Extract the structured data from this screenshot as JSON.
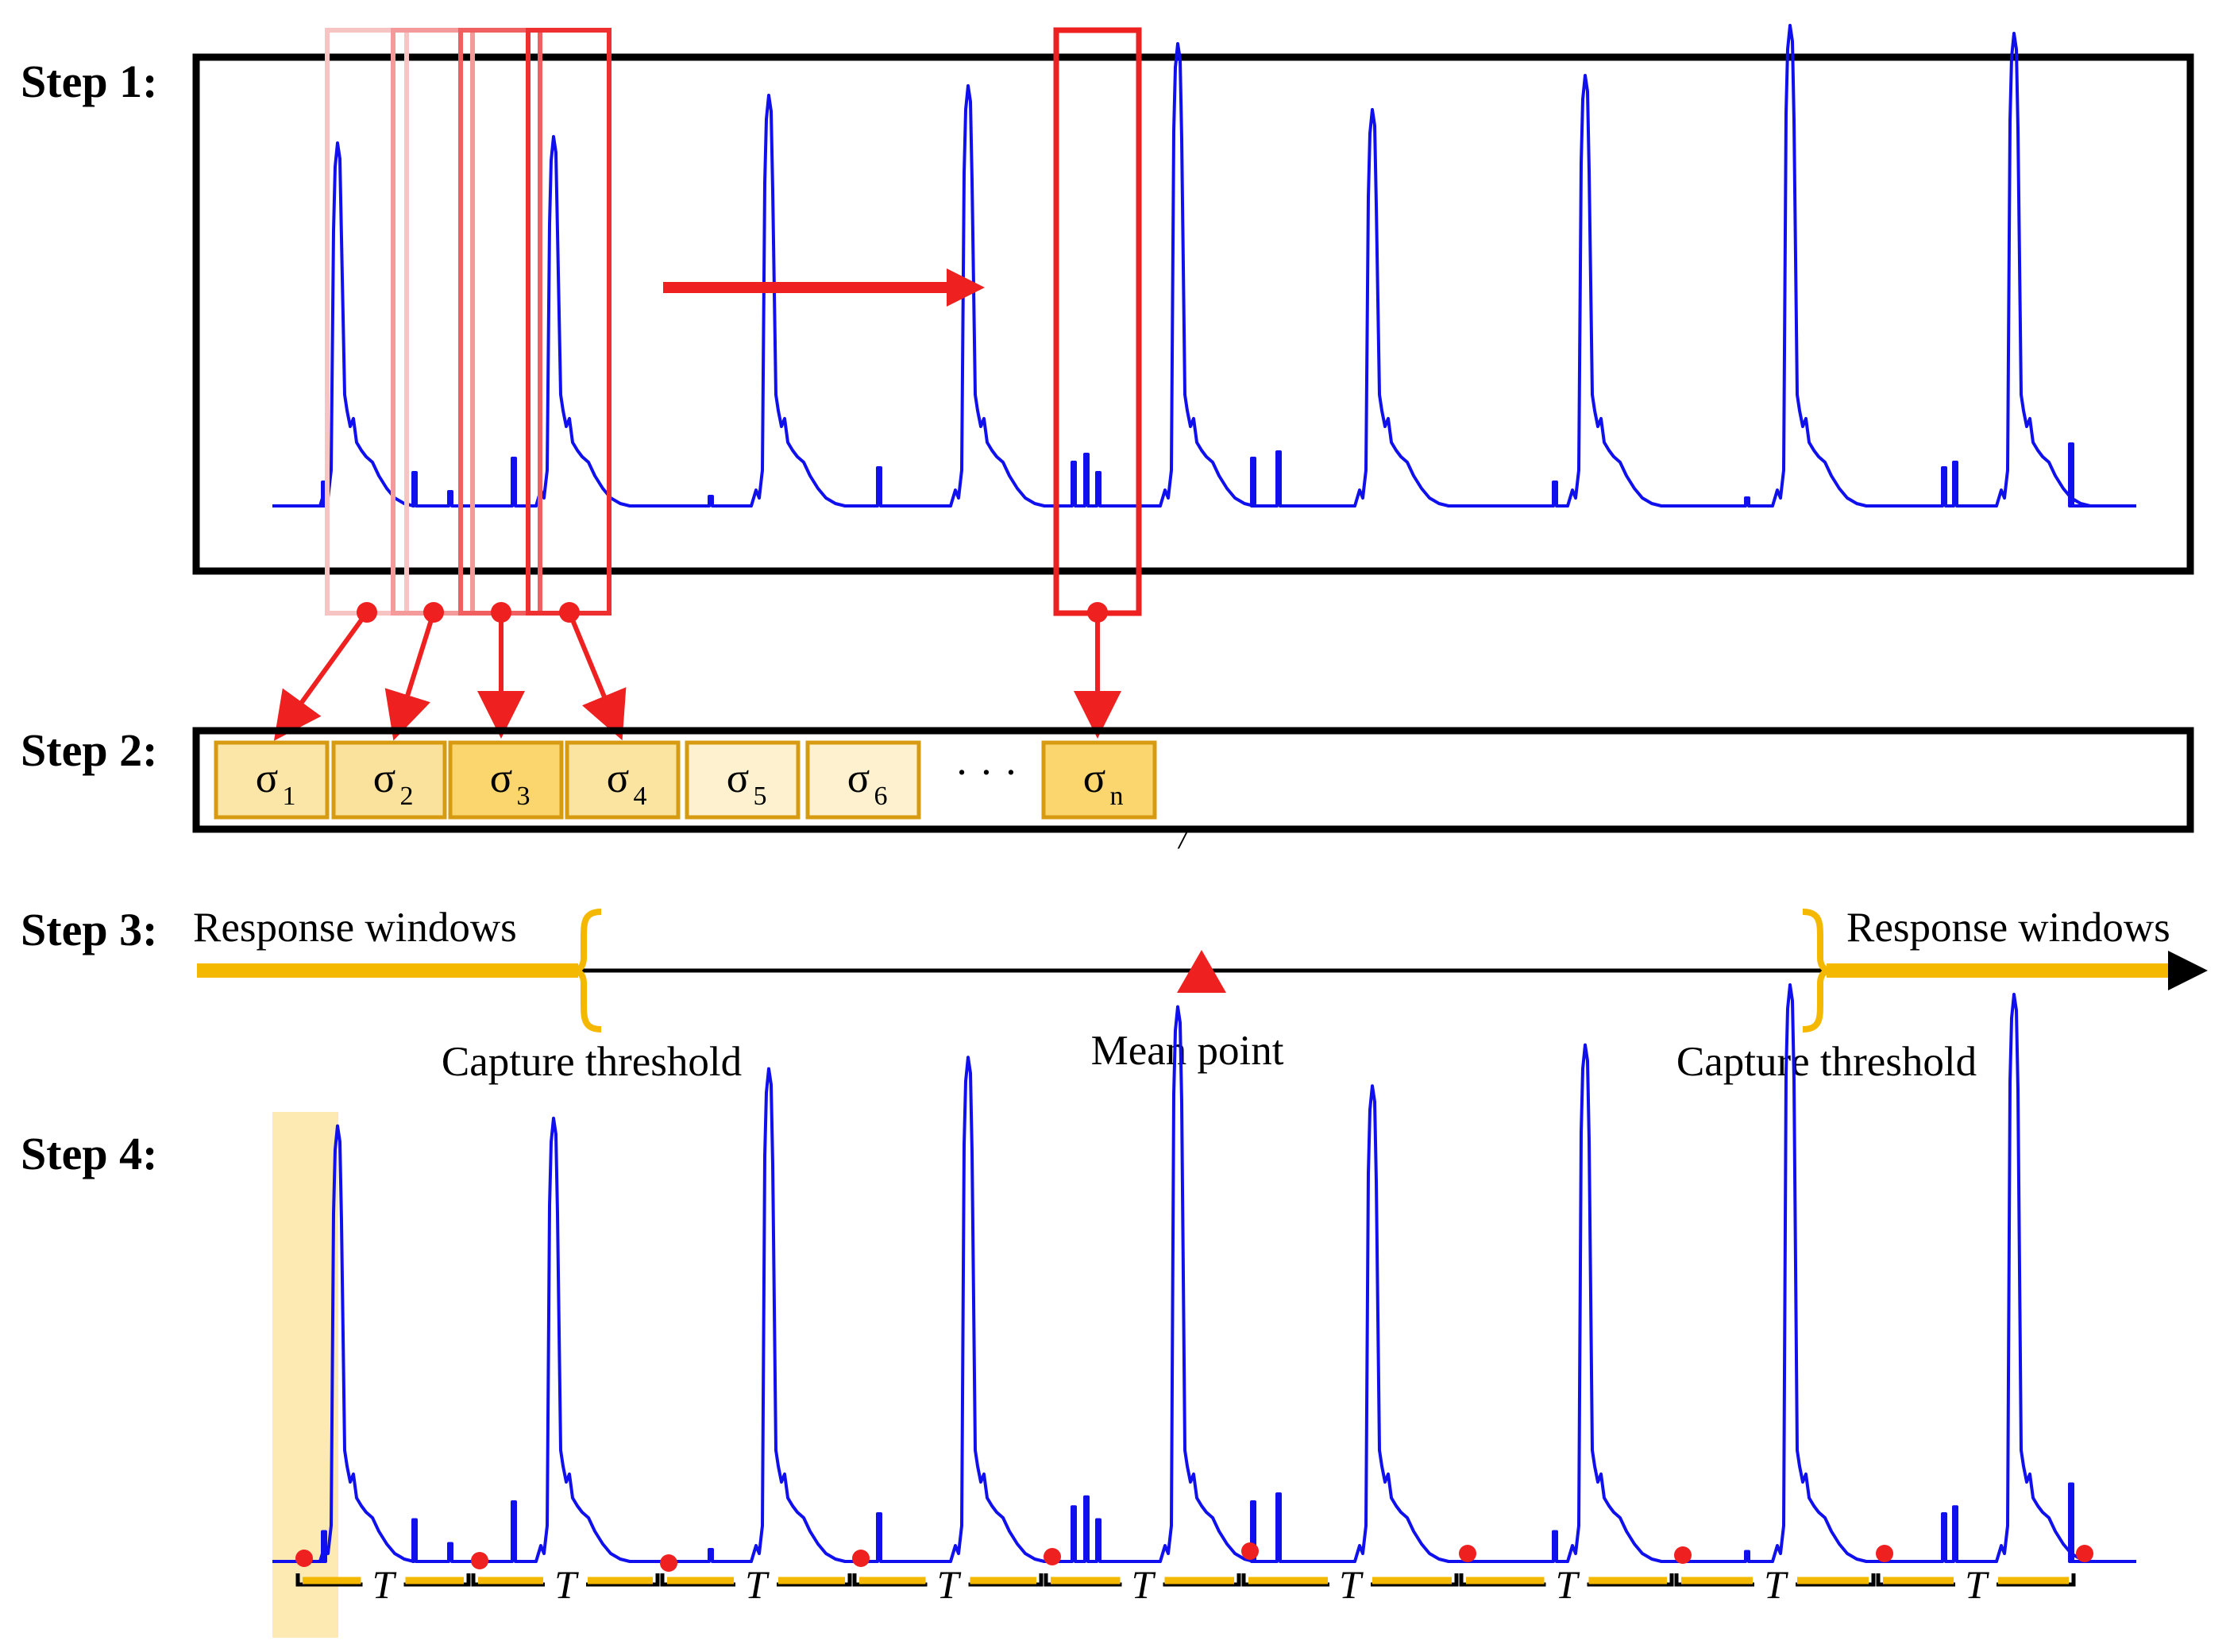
{
  "steps": {
    "step1": "Step 1:",
    "step2": "Step 2:",
    "step3": "Step 3:",
    "step4": "Step 4:"
  },
  "step2": {
    "sigma_symbol": "σ",
    "boxes": [
      {
        "sub": "1",
        "fill": "#fbe6a8"
      },
      {
        "sub": "2",
        "fill": "#fbe29c"
      },
      {
        "sub": "3",
        "fill": "#fbd66e"
      },
      {
        "sub": "4",
        "fill": "#fbe49f"
      },
      {
        "sub": "5",
        "fill": "#fdf1cf"
      },
      {
        "sub": "6",
        "fill": "#fdf1cf"
      },
      {
        "sub": "n",
        "fill": "#fbd66e"
      }
    ],
    "ellipsis": "· · ·",
    "stray_mark": "/"
  },
  "step3": {
    "response_windows_left": "Response windows",
    "response_windows_right": "Response windows",
    "capture_threshold_left": "Capture threshold",
    "capture_threshold_right": "Capture threshold",
    "mean_point": "Mean point"
  },
  "step4": {
    "period_label": "T"
  },
  "colors": {
    "signal": "#1010ee",
    "window_red": "#ee2020",
    "orange": "#f5b800",
    "highlight": "#fde9b2",
    "box_border": "#d79b12"
  }
}
